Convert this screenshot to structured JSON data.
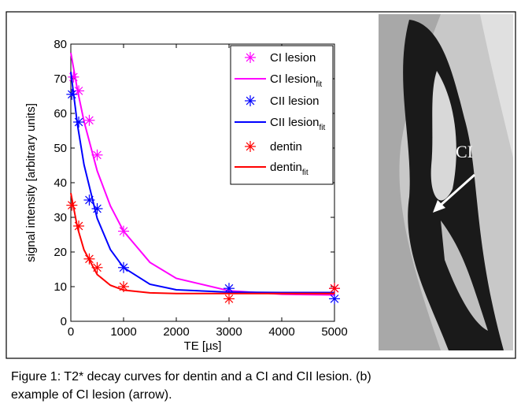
{
  "chart_data": {
    "type": "line",
    "xlabel": "TE [µs]",
    "ylabel": "signal intensity [arbitrary units]",
    "xlim": [
      0,
      5000
    ],
    "ylim": [
      0,
      80
    ],
    "xticks": [
      0,
      1000,
      2000,
      3000,
      4000,
      5000
    ],
    "yticks": [
      0,
      10,
      20,
      30,
      40,
      50,
      60,
      70,
      80
    ],
    "legend": "upper right",
    "series": [
      {
        "name": "CI lesion",
        "color": "#ff00ff",
        "style": "markers",
        "x": [
          50,
          150,
          350,
          500,
          1000,
          5000
        ],
        "values": [
          70.5,
          66.5,
          58,
          48,
          26,
          9.5
        ]
      },
      {
        "name": "CI lesion",
        "subscript": "fit",
        "color": "#ff00ff",
        "style": "line",
        "x": [
          0,
          125,
          250,
          500,
          750,
          1000,
          1500,
          2000,
          3000,
          4000,
          5000
        ],
        "values": [
          77.5,
          66.8,
          57.7,
          43.4,
          33.3,
          26,
          17,
          12.4,
          8.8,
          7.8,
          7.6
        ]
      },
      {
        "name": "CII lesion",
        "color": "#0000ff",
        "style": "markers",
        "x": [
          20,
          150,
          350,
          500,
          1000,
          3000,
          5000
        ],
        "values": [
          65.5,
          57.5,
          35,
          32.5,
          15.5,
          9.5,
          6.5
        ]
      },
      {
        "name": "CII lesion",
        "subscript": "fit",
        "color": "#0000ff",
        "style": "line",
        "x": [
          0,
          125,
          250,
          500,
          750,
          1000,
          1500,
          2000,
          3000,
          4000,
          5000
        ],
        "values": [
          72,
          56.8,
          45.2,
          29.7,
          20.7,
          15.5,
          10.7,
          9.1,
          8.4,
          8.3,
          8.3
        ]
      },
      {
        "name": "dentin",
        "color": "#ff0000",
        "style": "markers",
        "x": [
          20,
          150,
          350,
          500,
          1000,
          3000,
          5000
        ],
        "values": [
          33.5,
          27.5,
          18,
          15.5,
          10,
          6.5,
          9.5
        ]
      },
      {
        "name": "dentin",
        "subscript": "fit",
        "color": "#ff0000",
        "style": "line",
        "x": [
          0,
          125,
          250,
          500,
          750,
          1000,
          1500,
          2000,
          3000,
          4000,
          5000
        ],
        "values": [
          37,
          27.1,
          20.6,
          13.5,
          10.4,
          9,
          8.2,
          8,
          8,
          8,
          8
        ]
      }
    ]
  },
  "image": {
    "label": "CI"
  },
  "caption": {
    "lines": [
      "Figure 1: T2* decay curves for dentin and a CI and CII lesion. (b)",
      "example of CI lesion (arrow)."
    ]
  }
}
